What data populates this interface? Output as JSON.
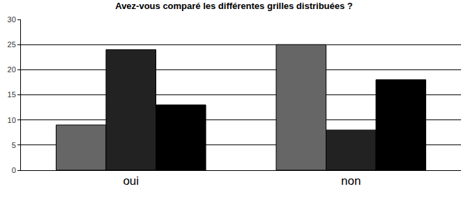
{
  "chart_data": {
    "type": "bar",
    "title": "Avez-vous comparé les différentes grilles distribuées ?",
    "categories": [
      "oui",
      "non"
    ],
    "series": [
      {
        "color": "#666666",
        "values": [
          9,
          25
        ]
      },
      {
        "color": "#222222",
        "values": [
          24,
          8
        ]
      },
      {
        "color": "#000000",
        "values": [
          13,
          18
        ]
      }
    ],
    "ylim": [
      0,
      30
    ],
    "yticks": [
      0,
      5,
      10,
      15,
      20,
      25,
      30
    ],
    "grid": true
  }
}
